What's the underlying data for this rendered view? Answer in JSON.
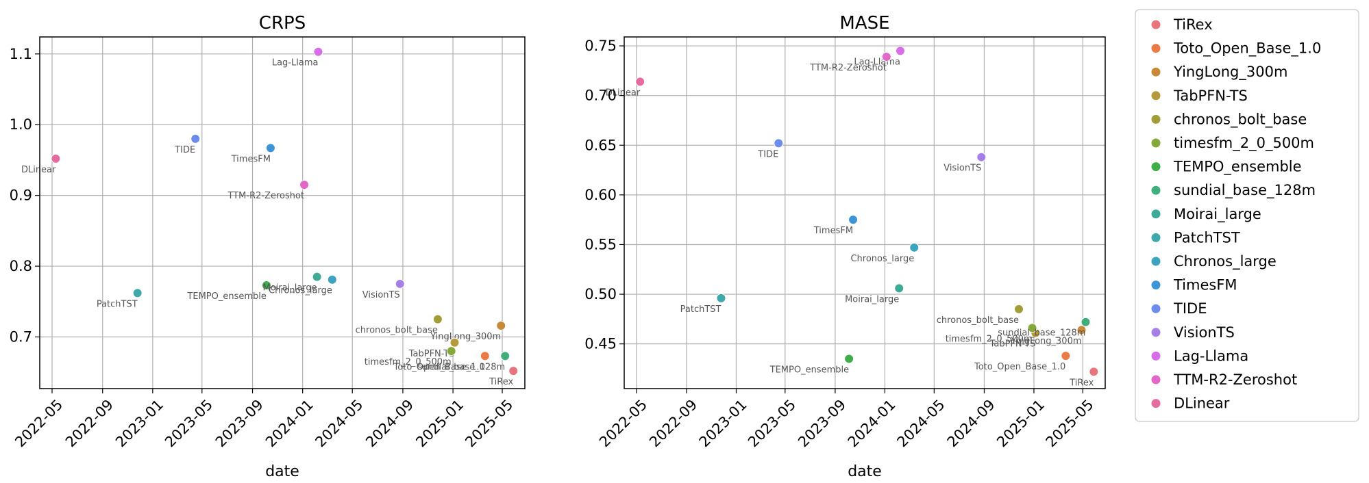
{
  "chart_data": [
    {
      "type": "scatter",
      "title": "CRPS",
      "xlabel": "date",
      "ylabel": "",
      "xlim": [
        "2022-04-01",
        "2025-06-25"
      ],
      "ylim": [
        0.627,
        1.124
      ],
      "x_ticks": [
        "2022-05",
        "2022-09",
        "2023-01",
        "2023-05",
        "2023-09",
        "2024-01",
        "2024-05",
        "2024-09",
        "2025-01",
        "2025-05"
      ],
      "y_ticks": [
        "0.7",
        "0.8",
        "0.9",
        "1.0",
        "1.1"
      ],
      "y_tick_values": [
        0.7,
        0.8,
        0.9,
        1.0,
        1.1
      ],
      "grid": true,
      "points": [
        {
          "model": "TiRex",
          "date": "2025-05-28",
          "value": 0.652,
          "label": "TiRex"
        },
        {
          "model": "Toto_Open_Base_1.0",
          "date": "2025-03-20",
          "value": 0.673,
          "label": "Toto_Open_Base_1.0"
        },
        {
          "model": "YingLong_300m",
          "date": "2025-04-28",
          "value": 0.716,
          "label": "YingLong_300m"
        },
        {
          "model": "TabPFN-TS",
          "date": "2025-01-05",
          "value": 0.692,
          "label": "TabPFN-TS"
        },
        {
          "model": "chronos_bolt_base",
          "date": "2024-11-25",
          "value": 0.725,
          "label": "chronos_bolt_base"
        },
        {
          "model": "timesfm_2_0_500m",
          "date": "2024-12-28",
          "value": 0.68,
          "label": "timesfm_2_0_500m"
        },
        {
          "model": "TEMPO_ensemble",
          "date": "2023-10-05",
          "value": 0.773,
          "label": "TEMPO_ensemble"
        },
        {
          "model": "sundial_base_128m",
          "date": "2025-05-08",
          "value": 0.673,
          "label": "sundial_base_128m"
        },
        {
          "model": "Moirai_large",
          "date": "2024-02-05",
          "value": 0.785,
          "label": "Moirai_large"
        },
        {
          "model": "PatchTST",
          "date": "2022-11-25",
          "value": 0.762,
          "label": "PatchTST"
        },
        {
          "model": "Chronos_large",
          "date": "2024-03-13",
          "value": 0.781,
          "label": "Chronos_large"
        },
        {
          "model": "TimesFM",
          "date": "2023-10-15",
          "value": 0.967,
          "label": "TimesFM"
        },
        {
          "model": "TIDE",
          "date": "2023-04-15",
          "value": 0.98,
          "label": "TIDE"
        },
        {
          "model": "VisionTS",
          "date": "2024-08-25",
          "value": 0.775,
          "label": "VisionTS"
        },
        {
          "model": "Lag-Llama",
          "date": "2024-02-08",
          "value": 1.103,
          "label": "Lag-Llama"
        },
        {
          "model": "TTM-R2-Zeroshot",
          "date": "2024-01-05",
          "value": 0.915,
          "label": "TTM-R2-Zeroshot"
        },
        {
          "model": "DLinear",
          "date": "2022-05-10",
          "value": 0.952,
          "label": "DLinear"
        }
      ]
    },
    {
      "type": "scatter",
      "title": "MASE",
      "xlabel": "date",
      "ylabel": "",
      "xlim": [
        "2022-04-01",
        "2025-06-25"
      ],
      "ylim": [
        0.405,
        0.759
      ],
      "x_ticks": [
        "2022-05",
        "2022-09",
        "2023-01",
        "2023-05",
        "2023-09",
        "2024-01",
        "2024-05",
        "2024-09",
        "2025-01",
        "2025-05"
      ],
      "y_ticks": [
        "0.45",
        "0.50",
        "0.55",
        "0.60",
        "0.65",
        "0.70",
        "0.75"
      ],
      "y_tick_values": [
        0.45,
        0.5,
        0.55,
        0.6,
        0.65,
        0.7,
        0.75
      ],
      "grid": true,
      "points": [
        {
          "model": "TiRex",
          "date": "2025-05-28",
          "value": 0.422,
          "label": "TiRex"
        },
        {
          "model": "Toto_Open_Base_1.0",
          "date": "2025-03-20",
          "value": 0.438,
          "label": "Toto_Open_Base_1.0"
        },
        {
          "model": "YingLong_300m",
          "date": "2025-04-28",
          "value": 0.464,
          "label": "YingLong_300m"
        },
        {
          "model": "TabPFN-TS",
          "date": "2025-01-05",
          "value": 0.461,
          "label": "TabPFN-TS"
        },
        {
          "model": "chronos_bolt_base",
          "date": "2024-11-25",
          "value": 0.485,
          "label": "chronos_bolt_base"
        },
        {
          "model": "timesfm_2_0_500m",
          "date": "2024-12-28",
          "value": 0.466,
          "label": "timesfm_2_0_500m"
        },
        {
          "model": "TEMPO_ensemble",
          "date": "2023-10-05",
          "value": 0.435,
          "label": "TEMPO_ensemble"
        },
        {
          "model": "sundial_base_128m",
          "date": "2025-05-08",
          "value": 0.472,
          "label": "sundial_base_128m"
        },
        {
          "model": "Moirai_large",
          "date": "2024-02-05",
          "value": 0.506,
          "label": "Moirai_large"
        },
        {
          "model": "PatchTST",
          "date": "2022-11-25",
          "value": 0.496,
          "label": "PatchTST"
        },
        {
          "model": "Chronos_large",
          "date": "2024-03-13",
          "value": 0.547,
          "label": "Chronos_large"
        },
        {
          "model": "TimesFM",
          "date": "2023-10-15",
          "value": 0.575,
          "label": "TimesFM"
        },
        {
          "model": "TIDE",
          "date": "2023-04-15",
          "value": 0.652,
          "label": "TIDE"
        },
        {
          "model": "VisionTS",
          "date": "2024-08-25",
          "value": 0.638,
          "label": "VisionTS"
        },
        {
          "model": "Lag-Llama",
          "date": "2024-02-08",
          "value": 0.745,
          "label": "Lag-Llama"
        },
        {
          "model": "TTM-R2-Zeroshot",
          "date": "2024-01-05",
          "value": 0.739,
          "label": "TTM-R2-Zeroshot"
        },
        {
          "model": "DLinear",
          "date": "2022-05-10",
          "value": 0.714,
          "label": "DLinear"
        }
      ]
    }
  ],
  "legend": {
    "placement": "right",
    "entries": [
      {
        "model": "TiRex",
        "color": "#e8747c"
      },
      {
        "model": "Toto_Open_Base_1.0",
        "color": "#ea7b45"
      },
      {
        "model": "YingLong_300m",
        "color": "#c88a38"
      },
      {
        "model": "TabPFN-TS",
        "color": "#b59a3c"
      },
      {
        "model": "chronos_bolt_base",
        "color": "#a19e39"
      },
      {
        "model": "timesfm_2_0_500m",
        "color": "#86a83a"
      },
      {
        "model": "TEMPO_ensemble",
        "color": "#3fae4a"
      },
      {
        "model": "sundial_base_128m",
        "color": "#40ae7c"
      },
      {
        "model": "Moirai_large",
        "color": "#3faa96"
      },
      {
        "model": "PatchTST",
        "color": "#3ea8aa"
      },
      {
        "model": "Chronos_large",
        "color": "#3ea3bf"
      },
      {
        "model": "TimesFM",
        "color": "#3d95d7"
      },
      {
        "model": "TIDE",
        "color": "#6d8ded"
      },
      {
        "model": "VisionTS",
        "color": "#a57fe6"
      },
      {
        "model": "Lag-Llama",
        "color": "#d76ee8"
      },
      {
        "model": "TTM-R2-Zeroshot",
        "color": "#e267c7"
      },
      {
        "model": "DLinear",
        "color": "#e56c9f"
      }
    ]
  }
}
